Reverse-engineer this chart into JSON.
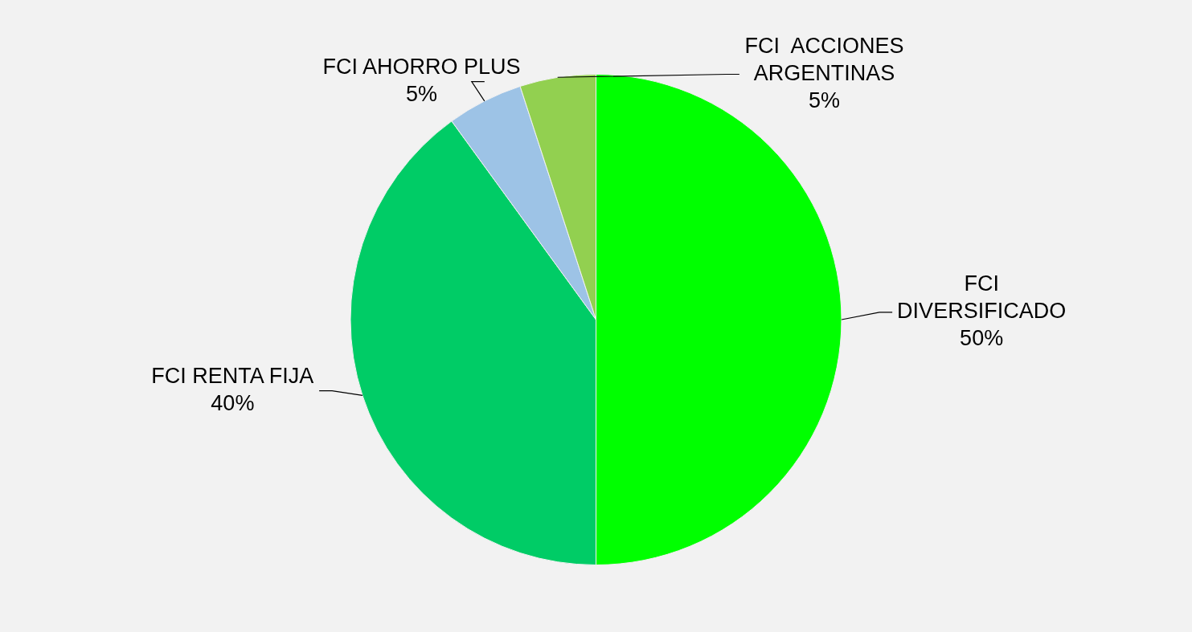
{
  "chart_data": {
    "type": "pie",
    "categories": [
      "FCI DIVERSIFICADO",
      "FCI RENTA FIJA",
      "FCI AHORRO PLUS",
      "FCI  ACCIONES ARGENTINAS"
    ],
    "values": [
      50,
      40,
      5,
      5
    ],
    "value_labels": [
      "50%",
      "40%",
      "5%",
      "5%"
    ],
    "colors": [
      "#00ff00",
      "#00cc66",
      "#9dc3e6",
      "#92d050"
    ],
    "legend": false
  }
}
